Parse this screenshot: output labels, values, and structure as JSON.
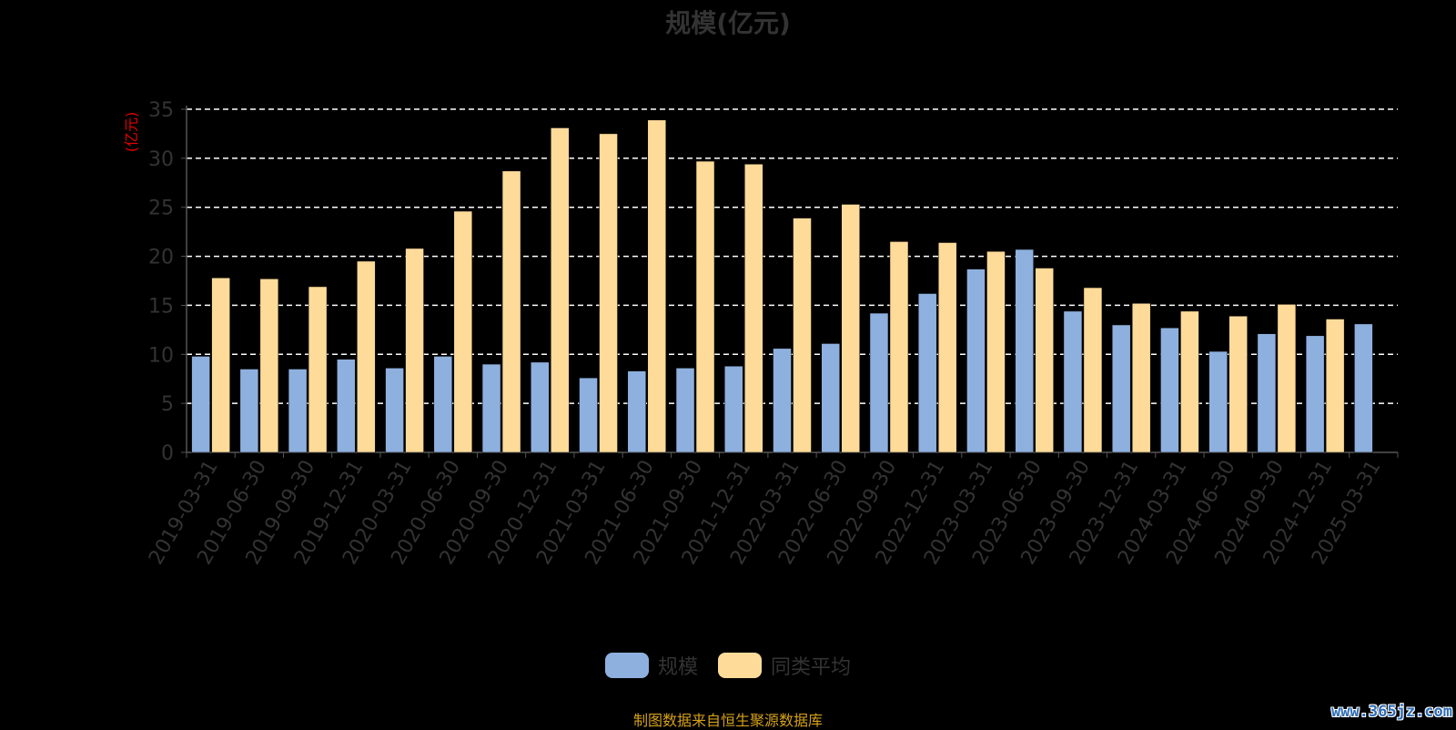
{
  "chart_data": {
    "type": "bar",
    "title": "规模(亿元)",
    "ylabel": "(亿元)",
    "xlabel": "",
    "ylim": [
      0,
      35
    ],
    "yticks": [
      0,
      5,
      10,
      15,
      20,
      25,
      30,
      35
    ],
    "grid": true,
    "legend_position": "bottom",
    "categories": [
      "2019-03-31",
      "2019-06-30",
      "2019-09-30",
      "2019-12-31",
      "2020-03-31",
      "2020-06-30",
      "2020-09-30",
      "2020-12-31",
      "2021-03-31",
      "2021-06-30",
      "2021-09-30",
      "2021-12-31",
      "2022-03-31",
      "2022-06-30",
      "2022-09-30",
      "2022-12-31",
      "2023-03-31",
      "2023-06-30",
      "2023-09-30",
      "2023-12-31",
      "2024-03-31",
      "2024-06-30",
      "2024-09-30",
      "2024-12-31",
      "2025-03-31"
    ],
    "series": [
      {
        "name": "规模",
        "color": "#8eb0de",
        "values": [
          9.8,
          8.5,
          8.5,
          9.5,
          8.6,
          9.8,
          9.0,
          9.2,
          7.6,
          8.3,
          8.6,
          8.8,
          10.6,
          11.1,
          14.2,
          16.2,
          18.7,
          20.7,
          14.4,
          13.0,
          12.7,
          10.3,
          12.1,
          11.9,
          13.1
        ]
      },
      {
        "name": "同类平均",
        "color": "#ffdb9a",
        "values": [
          17.8,
          17.7,
          16.9,
          19.5,
          20.8,
          24.6,
          28.7,
          33.1,
          32.5,
          33.9,
          29.7,
          29.4,
          23.9,
          25.3,
          21.5,
          21.4,
          20.5,
          18.8,
          16.8,
          15.2,
          14.4,
          13.9,
          15.1,
          13.6,
          null
        ]
      }
    ]
  },
  "legend": {
    "items": [
      {
        "label": "规模",
        "color": "#8eb0de"
      },
      {
        "label": "同类平均",
        "color": "#ffdb9a"
      }
    ]
  },
  "footer": {
    "source": "制图数据来自恒生聚源数据库",
    "watermark": "www.365jz.com"
  }
}
